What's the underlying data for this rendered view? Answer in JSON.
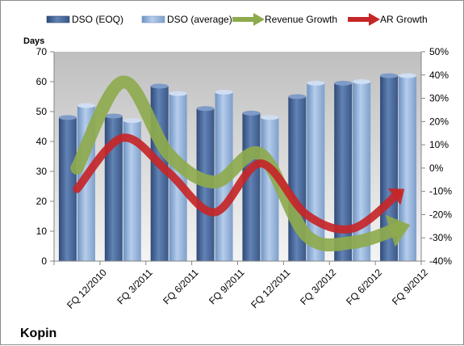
{
  "chart_data": {
    "type": "bar",
    "company": "Kopin",
    "ylabel": "Days",
    "categories": [
      "FQ 12/2010",
      "FQ 3/2011",
      "FQ 6/2011",
      "FQ 9/2011",
      "FQ 12/2011",
      "FQ 3/2012",
      "FQ 6/2012",
      "FQ 9/2012"
    ],
    "ylim": [
      0,
      70
    ],
    "yticks": [
      0,
      10,
      20,
      30,
      40,
      50,
      60,
      70
    ],
    "y2lim": [
      -40,
      50
    ],
    "y2ticks": [
      "-40%",
      "-30%",
      "-20%",
      "-10%",
      "0%",
      "10%",
      "20%",
      "30%",
      "40%",
      "50%"
    ],
    "y2tick_values": [
      -40,
      -30,
      -20,
      -10,
      0,
      10,
      20,
      30,
      40,
      50
    ],
    "legend_position": "top",
    "grid": false,
    "series": [
      {
        "name": "DSO (EOQ)",
        "kind": "bar",
        "axis": "left",
        "color": "#4f6d9e",
        "values": [
          48,
          48.5,
          58.5,
          51,
          49.5,
          55,
          59.5,
          62
        ]
      },
      {
        "name": "DSO (average)",
        "kind": "bar",
        "axis": "left",
        "color": "#93b4dd",
        "values": [
          52,
          47,
          56,
          56.5,
          48,
          59.5,
          60,
          62
        ]
      },
      {
        "name": "Revenue Growth",
        "kind": "line",
        "axis": "right",
        "color": "#8eaa4e",
        "values": [
          0,
          37,
          6,
          -6,
          6,
          -29,
          -32,
          -26
        ]
      },
      {
        "name": "AR Growth",
        "kind": "line",
        "axis": "right",
        "color": "#c62628",
        "values": [
          -9,
          13,
          -2,
          -19,
          2,
          -20,
          -26,
          -11
        ]
      }
    ]
  }
}
